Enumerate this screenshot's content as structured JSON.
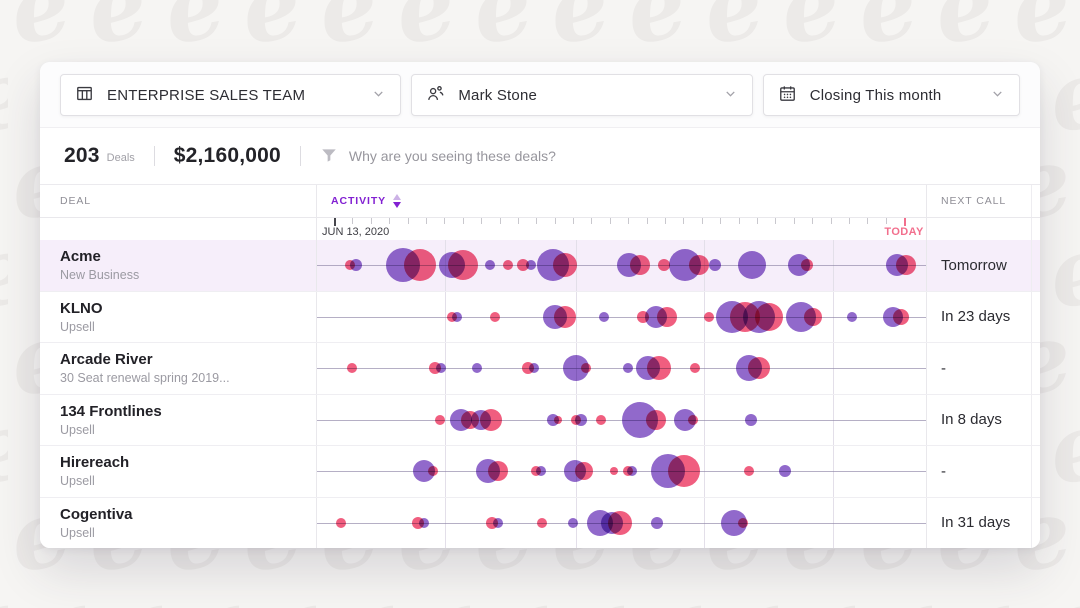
{
  "background": {
    "watermark_letter": "e"
  },
  "colors": {
    "accent": "#8220d2",
    "purple": "#7e4fc2",
    "red": "#ee4268",
    "today": "#f26f8d",
    "highlight": "#f6eefa",
    "baseline": "#8e84a6",
    "gridline": "#e3dfe9"
  },
  "filters": [
    {
      "icon": "table-columns-icon",
      "label": "ENTERPRISE SALES TEAM"
    },
    {
      "icon": "users-icon",
      "label": "Mark Stone"
    },
    {
      "icon": "calendar-icon",
      "label": "Closing This month"
    }
  ],
  "stats": {
    "deals_count": "203",
    "deals_label": "Deals",
    "amount": "$2,160,000",
    "filter_hint": "Why are you seeing these deals?"
  },
  "table": {
    "columns": {
      "deal": "DEAL",
      "activity": "ACTIVITY",
      "next_call": "NEXT CALL"
    },
    "axis": {
      "start_label": "JUN 13, 2020",
      "today_label": "TODAY",
      "tick_count": 32,
      "first_tick_pct": 2.8,
      "today_tick_pct": 96.4,
      "gridlines": [
        21.1,
        42.5,
        63.6,
        84.8
      ]
    },
    "rows": [
      {
        "name": "Acme",
        "subtitle": "New Business",
        "next_call": "Tomorrow",
        "highlighted": true,
        "bubbles": [
          [
            5.4,
            5,
            "r"
          ],
          [
            6.4,
            6,
            "p"
          ],
          [
            14.1,
            17,
            "p"
          ],
          [
            16.9,
            16,
            "r"
          ],
          [
            22.1,
            13,
            "p"
          ],
          [
            23.9,
            15,
            "r"
          ],
          [
            28.4,
            5,
            "p"
          ],
          [
            31.3,
            5,
            "r"
          ],
          [
            33.9,
            6,
            "r"
          ],
          [
            35.1,
            5,
            "p"
          ],
          [
            38.7,
            16,
            "p"
          ],
          [
            40.8,
            12,
            "r"
          ],
          [
            51.3,
            12,
            "p"
          ],
          [
            53.1,
            10,
            "r"
          ],
          [
            57.0,
            6,
            "r"
          ],
          [
            60.5,
            16,
            "p"
          ],
          [
            62.8,
            10,
            "r"
          ],
          [
            65.4,
            6,
            "p"
          ],
          [
            71.5,
            14,
            "p"
          ],
          [
            79.2,
            11,
            "p"
          ],
          [
            80.5,
            6,
            "r"
          ],
          [
            95.2,
            11,
            "p"
          ],
          [
            96.7,
            10,
            "r"
          ]
        ]
      },
      {
        "name": "KLNO",
        "subtitle": "Upsell",
        "next_call": "In 23 days",
        "highlighted": false,
        "bubbles": [
          [
            22.1,
            5,
            "r"
          ],
          [
            23.0,
            5,
            "p"
          ],
          [
            29.2,
            5,
            "r"
          ],
          [
            39.0,
            12,
            "p"
          ],
          [
            40.8,
            11,
            "r"
          ],
          [
            47.2,
            5,
            "p"
          ],
          [
            53.6,
            6,
            "r"
          ],
          [
            55.6,
            11,
            "p"
          ],
          [
            57.4,
            10,
            "r"
          ],
          [
            64.4,
            5,
            "r"
          ],
          [
            68.2,
            16,
            "p"
          ],
          [
            70.3,
            15,
            "r"
          ],
          [
            72.5,
            16,
            "p"
          ],
          [
            74.3,
            14,
            "r"
          ],
          [
            79.5,
            15,
            "p"
          ],
          [
            81.5,
            9,
            "r"
          ],
          [
            87.9,
            5,
            "p"
          ],
          [
            94.6,
            10,
            "p"
          ],
          [
            95.9,
            8,
            "r"
          ]
        ]
      },
      {
        "name": "Arcade River",
        "subtitle": "30 Seat renewal spring 2019...",
        "next_call": "-",
        "highlighted": false,
        "bubbles": [
          [
            5.7,
            5,
            "r"
          ],
          [
            19.3,
            6,
            "r"
          ],
          [
            20.3,
            5,
            "p"
          ],
          [
            26.2,
            5,
            "p"
          ],
          [
            34.6,
            6,
            "r"
          ],
          [
            35.6,
            5,
            "p"
          ],
          [
            42.6,
            13,
            "p"
          ],
          [
            44.1,
            5,
            "r"
          ],
          [
            51.0,
            5,
            "p"
          ],
          [
            54.3,
            12,
            "p"
          ],
          [
            56.1,
            12,
            "r"
          ],
          [
            62.0,
            5,
            "r"
          ],
          [
            71.0,
            13,
            "p"
          ],
          [
            72.6,
            11,
            "r"
          ]
        ]
      },
      {
        "name": "134 Frontlines",
        "subtitle": "Upsell",
        "next_call": "In 8 days",
        "highlighted": false,
        "bubbles": [
          [
            20.2,
            5,
            "r"
          ],
          [
            23.6,
            11,
            "p"
          ],
          [
            25.2,
            9,
            "r"
          ],
          [
            26.9,
            10,
            "p"
          ],
          [
            28.5,
            11,
            "r"
          ],
          [
            38.7,
            6,
            "p"
          ],
          [
            39.5,
            4,
            "r"
          ],
          [
            42.5,
            5,
            "r"
          ],
          [
            43.3,
            6,
            "p"
          ],
          [
            46.6,
            5,
            "r"
          ],
          [
            53.1,
            18,
            "p"
          ],
          [
            55.6,
            10,
            "r"
          ],
          [
            60.5,
            11,
            "p"
          ],
          [
            61.8,
            5,
            "r"
          ],
          [
            71.3,
            6,
            "p"
          ]
        ]
      },
      {
        "name": "Hirereach",
        "subtitle": "Upsell",
        "next_call": "-",
        "highlighted": false,
        "bubbles": [
          [
            17.5,
            11,
            "p"
          ],
          [
            19.0,
            5,
            "r"
          ],
          [
            28.0,
            12,
            "p"
          ],
          [
            29.7,
            10,
            "r"
          ],
          [
            35.9,
            5,
            "r"
          ],
          [
            36.7,
            5,
            "p"
          ],
          [
            42.3,
            11,
            "p"
          ],
          [
            43.9,
            9,
            "r"
          ],
          [
            48.7,
            4,
            "r"
          ],
          [
            51.0,
            5,
            "r"
          ],
          [
            51.8,
            5,
            "p"
          ],
          [
            57.7,
            17,
            "p"
          ],
          [
            60.2,
            16,
            "r"
          ],
          [
            71.0,
            5,
            "r"
          ],
          [
            76.9,
            6,
            "p"
          ]
        ]
      },
      {
        "name": "Cogentiva",
        "subtitle": "Upsell",
        "next_call": "In 31 days",
        "highlighted": false,
        "bubbles": [
          [
            3.9,
            5,
            "r"
          ],
          [
            16.6,
            6,
            "r"
          ],
          [
            17.5,
            5,
            "p"
          ],
          [
            28.7,
            6,
            "r"
          ],
          [
            29.7,
            5,
            "p"
          ],
          [
            36.9,
            5,
            "r"
          ],
          [
            42.1,
            5,
            "p"
          ],
          [
            46.4,
            13,
            "p"
          ],
          [
            48.4,
            11,
            "p"
          ],
          [
            49.8,
            12,
            "r"
          ],
          [
            55.9,
            6,
            "p"
          ],
          [
            68.5,
            13,
            "p"
          ],
          [
            70.0,
            5,
            "r"
          ]
        ]
      }
    ]
  }
}
